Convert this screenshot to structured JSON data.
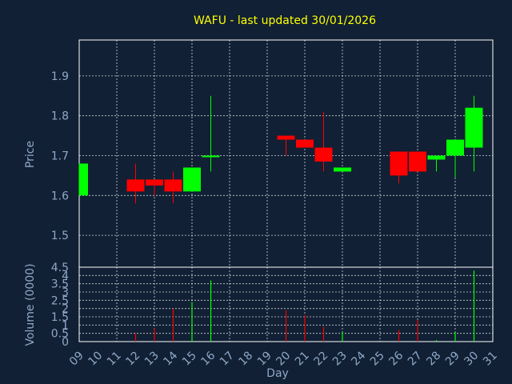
{
  "colors": {
    "background": "#112034",
    "plot_background": "#112034",
    "frame": "#ffffff",
    "grid": "#ffffff",
    "title": "#ffff00",
    "axis_text": "#8fa8c8",
    "up": "#00ff00",
    "down": "#ff0000"
  },
  "chart_data": [
    {
      "type": "candlestick",
      "title": "WAFU - last updated 30/01/2026",
      "ylabel": "Price",
      "ylim": [
        1.42,
        1.99
      ],
      "yticks": [
        "1.5",
        "1.6",
        "1.7",
        "1.8",
        "1.9"
      ],
      "grid": true,
      "candles": [
        {
          "day": 9,
          "open": 1.6,
          "high": 1.68,
          "low": 1.6,
          "close": 1.68
        },
        {
          "day": 12,
          "open": 1.64,
          "high": 1.68,
          "low": 1.58,
          "close": 1.61
        },
        {
          "day": 13,
          "open": 1.64,
          "high": 1.64,
          "low": 1.6,
          "close": 1.625
        },
        {
          "day": 14,
          "open": 1.64,
          "high": 1.66,
          "low": 1.58,
          "close": 1.61
        },
        {
          "day": 15,
          "open": 1.61,
          "high": 1.67,
          "low": 1.61,
          "close": 1.67
        },
        {
          "day": 16,
          "open": 1.7,
          "high": 1.85,
          "low": 1.66,
          "close": 1.7
        },
        {
          "day": 20,
          "open": 1.75,
          "high": 1.75,
          "low": 1.7,
          "close": 1.74
        },
        {
          "day": 21,
          "open": 1.74,
          "high": 1.74,
          "low": 1.72,
          "close": 1.72
        },
        {
          "day": 22,
          "open": 1.72,
          "high": 1.81,
          "low": 1.66,
          "close": 1.685
        },
        {
          "day": 23,
          "open": 1.66,
          "high": 1.67,
          "low": 1.66,
          "close": 1.67
        },
        {
          "day": 26,
          "open": 1.71,
          "high": 1.71,
          "low": 1.63,
          "close": 1.65
        },
        {
          "day": 27,
          "open": 1.71,
          "high": 1.71,
          "low": 1.66,
          "close": 1.66
        },
        {
          "day": 28,
          "open": 1.69,
          "high": 1.7,
          "low": 1.66,
          "close": 1.7
        },
        {
          "day": 29,
          "open": 1.7,
          "high": 1.74,
          "low": 1.645,
          "close": 1.74
        },
        {
          "day": 30,
          "open": 1.72,
          "high": 1.85,
          "low": 1.66,
          "close": 1.82
        }
      ]
    },
    {
      "type": "bar",
      "ylabel": "Volume (0000)",
      "xlabel": "Day",
      "ylim": [
        0,
        4.5
      ],
      "yticks": [
        "0",
        "0.5",
        "1",
        "1.5",
        "2",
        "2.5",
        "3",
        "3.5",
        "4",
        "4.5"
      ],
      "xlim": [
        9,
        31
      ],
      "xticks": [
        "09",
        "10",
        "11",
        "12",
        "13",
        "14",
        "15",
        "16",
        "17",
        "18",
        "19",
        "20",
        "21",
        "22",
        "23",
        "24",
        "25",
        "26",
        "27",
        "28",
        "29",
        "30",
        "31"
      ],
      "grid": true,
      "bars": [
        {
          "day": 12,
          "value": 0.5,
          "direction": "down"
        },
        {
          "day": 13,
          "value": 0.8,
          "direction": "down"
        },
        {
          "day": 14,
          "value": 2.0,
          "direction": "down"
        },
        {
          "day": 15,
          "value": 2.4,
          "direction": "up"
        },
        {
          "day": 16,
          "value": 3.7,
          "direction": "up"
        },
        {
          "day": 20,
          "value": 1.9,
          "direction": "down"
        },
        {
          "day": 21,
          "value": 1.6,
          "direction": "down"
        },
        {
          "day": 22,
          "value": 0.9,
          "direction": "down"
        },
        {
          "day": 23,
          "value": 0.6,
          "direction": "up"
        },
        {
          "day": 26,
          "value": 0.7,
          "direction": "down"
        },
        {
          "day": 27,
          "value": 1.3,
          "direction": "down"
        },
        {
          "day": 28,
          "value": 0.1,
          "direction": "up"
        },
        {
          "day": 29,
          "value": 0.6,
          "direction": "up"
        },
        {
          "day": 30,
          "value": 4.3,
          "direction": "up"
        }
      ]
    }
  ]
}
